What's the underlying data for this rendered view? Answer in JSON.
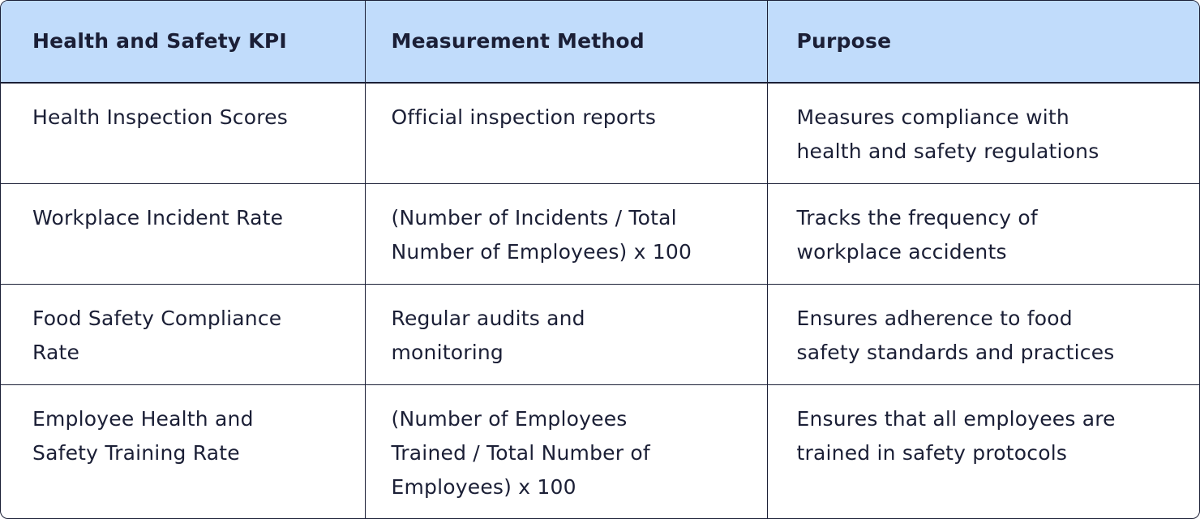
{
  "table": {
    "headers": [
      "Health and Safety KPI",
      "Measurement Method",
      "Purpose"
    ],
    "rows": [
      [
        [
          "Health Inspection Scores"
        ],
        [
          "Official inspection reports"
        ],
        [
          "Measures compliance with",
          "health and safety regulations"
        ]
      ],
      [
        [
          "Workplace Incident Rate"
        ],
        [
          "(Number of Incidents / Total",
          "Number of Employees) x 100"
        ],
        [
          "Tracks the frequency of",
          "workplace accidents"
        ]
      ],
      [
        [
          "Food Safety Compliance",
          "Rate"
        ],
        [
          "Regular audits and",
          "monitoring"
        ],
        [
          "Ensures adherence to food",
          "safety standards and practices"
        ]
      ],
      [
        [
          "Employee Health and",
          "Safety Training Rate"
        ],
        [
          "(Number of Employees",
          "Trained / Total Number of",
          "Employees) x 100"
        ],
        [
          "Ensures that all employees are",
          "trained in safety protocols"
        ]
      ]
    ]
  }
}
